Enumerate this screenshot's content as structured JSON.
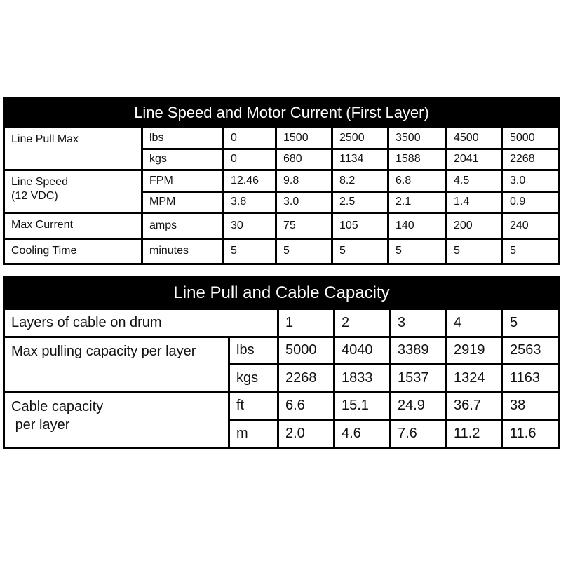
{
  "table1": {
    "title": "Line Speed and Motor Current (First Layer)",
    "rows": [
      {
        "label": "Line Pull Max",
        "units": [
          {
            "unit": "lbs",
            "values": [
              "0",
              "1500",
              "2500",
              "3500",
              "4500",
              "5000"
            ]
          },
          {
            "unit": "kgs",
            "values": [
              "0",
              "680",
              "1134",
              "1588",
              "2041",
              "2268"
            ]
          }
        ]
      },
      {
        "label": "Line Speed\n(12 VDC)",
        "units": [
          {
            "unit": "FPM",
            "values": [
              "12.46",
              "9.8",
              "8.2",
              "6.8",
              "4.5",
              "3.0"
            ]
          },
          {
            "unit": "MPM",
            "values": [
              "3.8",
              "3.0",
              "2.5",
              "2.1",
              "1.4",
              "0.9"
            ]
          }
        ]
      },
      {
        "label": "Max Current",
        "units": [
          {
            "unit": "amps",
            "values": [
              "30",
              "75",
              "105",
              "140",
              "200",
              "240"
            ]
          }
        ]
      },
      {
        "label": "Cooling Time",
        "units": [
          {
            "unit": "minutes",
            "values": [
              "5",
              "5",
              "5",
              "5",
              "5",
              "5"
            ]
          }
        ]
      }
    ]
  },
  "table2": {
    "title": "Line Pull and Cable Capacity",
    "layers_label": "Layers of cable on drum",
    "layers": [
      "1",
      "2",
      "3",
      "4",
      "5"
    ],
    "rows": [
      {
        "label": "Max pulling capacity per layer",
        "units": [
          {
            "unit": "lbs",
            "values": [
              "5000",
              "4040",
              "3389",
              "2919",
              "2563"
            ]
          },
          {
            "unit": "kgs",
            "values": [
              "2268",
              "1833",
              "1537",
              "1324",
              "1163"
            ]
          }
        ]
      },
      {
        "label": "Cable capacity\n per layer",
        "units": [
          {
            "unit": "ft",
            "values": [
              "6.6",
              "15.1",
              "24.9",
              "36.7",
              "38"
            ]
          },
          {
            "unit": "m",
            "values": [
              "2.0",
              "4.6",
              "7.6",
              "11.2",
              "11.6"
            ]
          }
        ]
      }
    ]
  }
}
